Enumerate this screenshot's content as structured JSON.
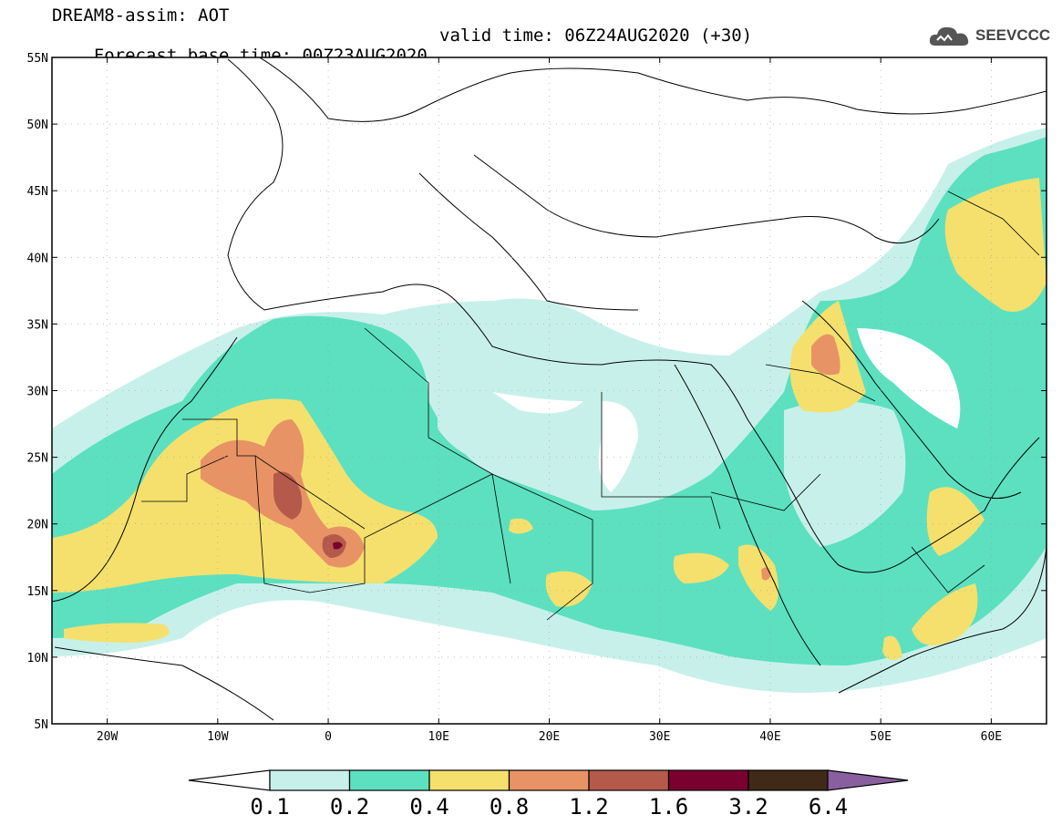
{
  "header": {
    "title": "DREAM8-assim: AOT",
    "base_time": "Forecast base time: 00Z23AUG2020",
    "valid_time": "valid time: 06Z24AUG2020 (+30)"
  },
  "logo": {
    "text": "SEEVCCC",
    "icon": "cloud-logo-icon"
  },
  "map": {
    "lon_ticks": [
      "20W",
      "10W",
      "0",
      "10E",
      "20E",
      "30E",
      "40E",
      "50E",
      "60E"
    ],
    "lat_ticks": [
      "55N",
      "50N",
      "45N",
      "40N",
      "35N",
      "30N",
      "25N",
      "20N",
      "15N",
      "10N",
      "5N"
    ],
    "lon_range": [
      -25,
      65
    ],
    "lat_range": [
      5,
      55
    ]
  },
  "colorbar": {
    "labels": [
      "0.1",
      "0.2",
      "0.4",
      "0.8",
      "1.2",
      "1.6",
      "3.2",
      "6.4"
    ],
    "colors": [
      "#c8f0ea",
      "#5ce0c0",
      "#f5e06e",
      "#e89366",
      "#b55a4a",
      "#7a0030",
      "#3f2a18",
      "#8a5fa0"
    ]
  }
}
